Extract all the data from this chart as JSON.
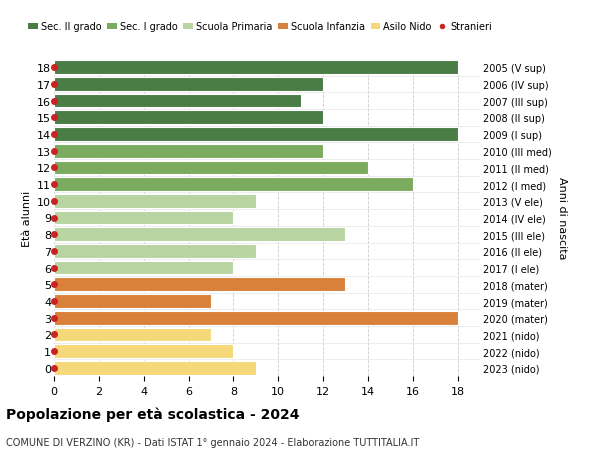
{
  "ages": [
    18,
    17,
    16,
    15,
    14,
    13,
    12,
    11,
    10,
    9,
    8,
    7,
    6,
    5,
    4,
    3,
    2,
    1,
    0
  ],
  "years": [
    "2005 (V sup)",
    "2006 (IV sup)",
    "2007 (III sup)",
    "2008 (II sup)",
    "2009 (I sup)",
    "2010 (III med)",
    "2011 (II med)",
    "2012 (I med)",
    "2013 (V ele)",
    "2014 (IV ele)",
    "2015 (III ele)",
    "2016 (II ele)",
    "2017 (I ele)",
    "2018 (mater)",
    "2019 (mater)",
    "2020 (mater)",
    "2021 (nido)",
    "2022 (nido)",
    "2023 (nido)"
  ],
  "values": [
    18,
    12,
    11,
    12,
    18,
    12,
    14,
    16,
    9,
    8,
    13,
    9,
    8,
    13,
    7,
    18,
    7,
    8,
    9
  ],
  "colors": [
    "#4a7c45",
    "#4a7c45",
    "#4a7c45",
    "#4a7c45",
    "#4a7c45",
    "#7aab5e",
    "#7aab5e",
    "#7aab5e",
    "#b8d4a0",
    "#b8d4a0",
    "#b8d4a0",
    "#b8d4a0",
    "#b8d4a0",
    "#d9813a",
    "#d9813a",
    "#d9813a",
    "#f5d87a",
    "#f5d87a",
    "#f5d87a"
  ],
  "legend_labels": [
    "Sec. II grado",
    "Sec. I grado",
    "Scuola Primaria",
    "Scuola Infanzia",
    "Asilo Nido",
    "Stranieri"
  ],
  "legend_colors": [
    "#4a7c45",
    "#7aab5e",
    "#b8d4a0",
    "#d9813a",
    "#f5d87a",
    "#cc2222"
  ],
  "ylabel_left": "Età alunni",
  "ylabel_right": "Anni di nascita",
  "title": "Popolazione per età scolastica - 2024",
  "subtitle": "COMUNE DI VERZINO (KR) - Dati ISTAT 1° gennaio 2024 - Elaborazione TUTTITALIA.IT",
  "xlim": [
    0,
    19
  ],
  "xticks": [
    0,
    2,
    4,
    6,
    8,
    10,
    12,
    14,
    16,
    18
  ],
  "stranieri_color": "#cc2222",
  "bar_height": 0.82,
  "bg_color": "#ffffff",
  "grid_color": "#cccccc"
}
